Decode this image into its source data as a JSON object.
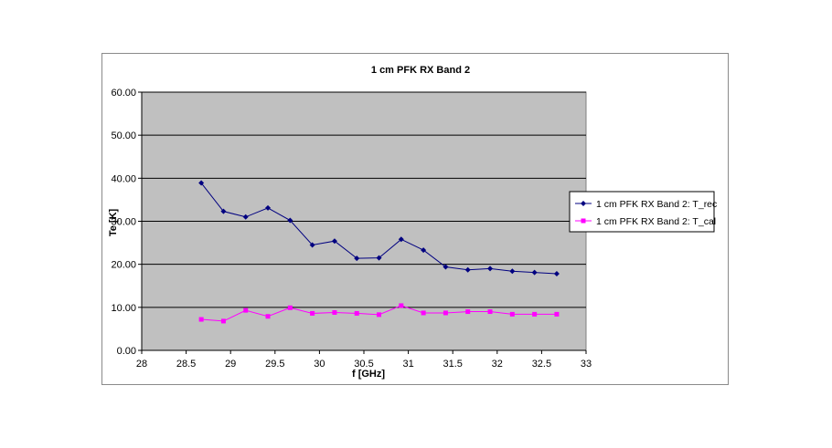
{
  "chart_data": {
    "type": "line",
    "title": "1 cm PFK RX Band 2",
    "xlabel": "f [GHz]",
    "ylabel": "Te [K]",
    "xlim": [
      28,
      33
    ],
    "ylim": [
      0,
      60
    ],
    "xticks": [
      "28",
      "28.5",
      "29",
      "29.5",
      "30",
      "30.5",
      "31",
      "31.5",
      "32",
      "32.5",
      "33"
    ],
    "yticks": [
      "0.00",
      "10.00",
      "20.00",
      "30.00",
      "40.00",
      "50.00",
      "60.00"
    ],
    "grid": true,
    "legend_position": "right",
    "plot_background": "#c0c0c0",
    "series": [
      {
        "name": "1 cm PFK RX Band 2: T_rec",
        "color": "#000080",
        "marker": "diamond",
        "x": [
          28.67,
          28.92,
          29.17,
          29.42,
          29.67,
          29.92,
          30.17,
          30.42,
          30.67,
          30.92,
          31.17,
          31.42,
          31.67,
          31.92,
          32.17,
          32.42,
          32.67
        ],
        "y": [
          38.9,
          32.3,
          31.0,
          33.1,
          30.2,
          24.5,
          25.4,
          21.4,
          21.5,
          25.8,
          23.3,
          19.4,
          18.7,
          19.0,
          18.4,
          18.1,
          17.8
        ]
      },
      {
        "name": "1 cm PFK RX Band 2: T_cal",
        "color": "#ff00ff",
        "marker": "square",
        "x": [
          28.67,
          28.92,
          29.17,
          29.42,
          29.67,
          29.92,
          30.17,
          30.42,
          30.67,
          30.92,
          31.17,
          31.42,
          31.67,
          31.92,
          32.17,
          32.42,
          32.67
        ],
        "y": [
          7.2,
          6.8,
          9.3,
          7.9,
          9.9,
          8.6,
          8.8,
          8.6,
          8.3,
          10.4,
          8.7,
          8.7,
          9.0,
          9.0,
          8.4,
          8.4,
          8.4
        ]
      }
    ]
  }
}
